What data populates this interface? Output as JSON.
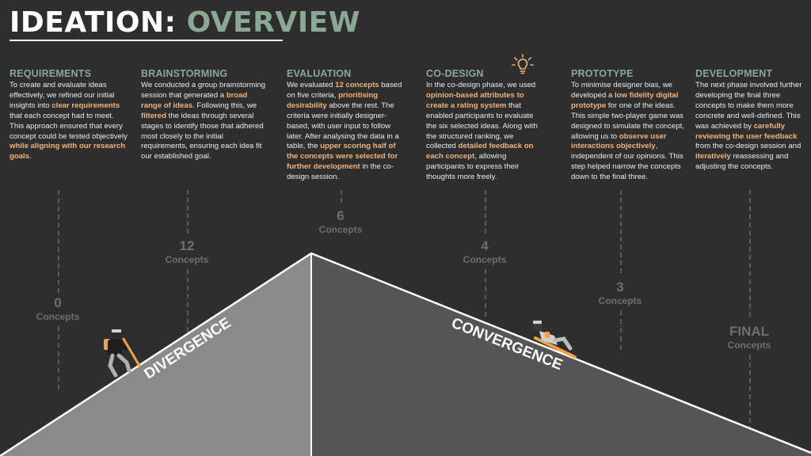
{
  "title": {
    "part1": "IDEATION:",
    "part2": "OVERVIEW"
  },
  "columns": [
    {
      "heading": "REQUIREMENTS",
      "body": [
        {
          "t": "To create and evaluate ideas effectively, we refined our initial insights into "
        },
        {
          "t": "clear requirements",
          "b": true
        },
        {
          "t": " that each concept had to meet. This approach ensured that every concept could be tested objectively "
        },
        {
          "t": "while aligning with our research goals",
          "b": true
        },
        {
          "t": "."
        }
      ]
    },
    {
      "heading": "BRAINSTORMING",
      "body": [
        {
          "t": "We conducted a group brainstorming session that generated a "
        },
        {
          "t": "broad range of ideas",
          "b": true
        },
        {
          "t": ". Following this, we "
        },
        {
          "t": "filtered",
          "b": true
        },
        {
          "t": " the ideas through several stages to identify those that adhered most closely to the initial requirements, ensuring each idea fit our established goal."
        }
      ]
    },
    {
      "heading": "EVALUATION",
      "body": [
        {
          "t": "We evaluated "
        },
        {
          "t": "12 concepts",
          "b": true
        },
        {
          "t": " based on five criteria, "
        },
        {
          "t": "prioritising desirability",
          "b": true
        },
        {
          "t": " above the rest. The criteria were initially designer-based, with user input to follow later. After analysing the data in a table, the "
        },
        {
          "t": "upper scoring half of the concepts were selected for further development",
          "b": true
        },
        {
          "t": " in the co-design session."
        }
      ]
    },
    {
      "heading": "CO-DESIGN",
      "body": [
        {
          "t": "In the co-design phase, we used "
        },
        {
          "t": "opinion-based attributes to create a rating system",
          "b": true
        },
        {
          "t": " that enabled participants to evaluate the six selected ideas. Along with the structured ranking, we collected "
        },
        {
          "t": "detailed feedback on each concept",
          "b": true
        },
        {
          "t": ", allowing participants to express their thoughts more freely."
        }
      ]
    },
    {
      "heading": "PROTOTYPE",
      "body": [
        {
          "t": "To minimise designer bias, we developed a "
        },
        {
          "t": "low fidelity digital prototype",
          "b": true
        },
        {
          "t": " for one of the ideas. This simple two-player game was designed to simulate the concept, allowing us to "
        },
        {
          "t": "observe user interactions objectively",
          "b": true
        },
        {
          "t": ", independent of our opinions. This step helped narrow the concepts down to the final three."
        }
      ]
    },
    {
      "heading": "DEVELOPMENT",
      "body": [
        {
          "t": "The next phase involved further developing the final three concepts to make them more concrete and well-defined. This was achieved by "
        },
        {
          "t": "carefully reviewing the user feedback",
          "b": true
        },
        {
          "t": " from the co-design session and "
        },
        {
          "t": "iteratively",
          "b": true
        },
        {
          "t": " reassessing and adjusting the concepts."
        }
      ]
    }
  ],
  "counts": [
    {
      "value": "0",
      "label": "Concepts"
    },
    {
      "value": "12",
      "label": "Concepts"
    },
    {
      "value": "6",
      "label": "Concepts"
    },
    {
      "value": "4",
      "label": "Concepts"
    },
    {
      "value": "3",
      "label": "Concepts"
    },
    {
      "value": "FINAL",
      "label": "Concepts"
    }
  ],
  "mountain": {
    "left_label": "DIVERGENCE",
    "right_label": "CONVERGENCE"
  },
  "colors": {
    "accent": "#8aa894",
    "highlight": "#f2b37a",
    "background": "#2e2e2e",
    "left_face": "#8a8a8a",
    "right_face": "#555555"
  },
  "icons": [
    "lightbulb-icon",
    "hiker-figure",
    "sliding-figure"
  ]
}
